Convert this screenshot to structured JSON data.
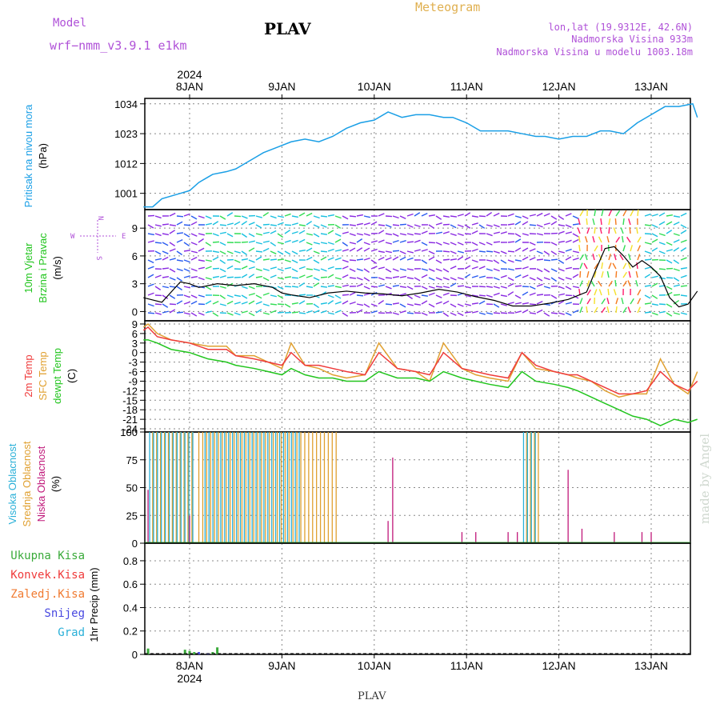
{
  "header": {
    "model_label": "Model",
    "model_name": "wrf−nmm_v3.9.1  e1km",
    "station": "PLAV",
    "product": "Meteogram",
    "coords": "lon,lat (19.9312E, 42.6N)",
    "altitude": "Nadmorska Visina 933m",
    "model_altitude": "Nadmorska Visina u modelu 1003.18m",
    "footer_station": "PLAV",
    "credit": "made by Angel"
  },
  "colors": {
    "pressure": "#1a9fe6",
    "t2m": "#ef3b3b",
    "sfc": "#e0a030",
    "dewpt": "#22c51e",
    "purple": "#b052d8",
    "high_cloud": "#2ab0d8",
    "mid_cloud": "#e0a030",
    "low_cloud": "#c0187a",
    "precip": "#3aaa3a"
  },
  "chart_data": [
    {
      "type": "line",
      "title": "",
      "ylabel_lines": [
        "Pritisak na nivou mora",
        "(hPa)"
      ],
      "yticks": [
        1001,
        1012,
        1023,
        1034
      ],
      "ylim": [
        995,
        1036
      ],
      "top_axis": {
        "year": "2024",
        "dates": [
          "8JAN",
          "9JAN",
          "10JAN",
          "11JAN",
          "12JAN",
          "13JAN"
        ]
      },
      "x": [
        0,
        0.1,
        0.2,
        0.3,
        0.4,
        0.5,
        0.6,
        0.7,
        0.75,
        0.9,
        1.0,
        1.1,
        1.2,
        1.3,
        1.45,
        1.6,
        1.75,
        1.9,
        2.05,
        2.2,
        2.35,
        2.5,
        2.65,
        2.8,
        2.95,
        3.1,
        3.25,
        3.35,
        3.5,
        3.65,
        3.8,
        3.95,
        4.1,
        4.25,
        4.35,
        4.5,
        4.65,
        4.8,
        4.95,
        5.05,
        5.2,
        5.35,
        5.5,
        5.65,
        5.8,
        5.95,
        6.0
      ],
      "series": [
        {
          "name": "",
          "values": [
            996,
            996,
            999,
            1000,
            1001,
            1002,
            1005,
            1007,
            1008,
            1009,
            1010,
            1012,
            1014,
            1016,
            1018,
            1020,
            1021,
            1020,
            1022,
            1025,
            1027,
            1028,
            1031,
            1029,
            1030,
            1030,
            1029,
            1029,
            1027,
            1024,
            1024,
            1024,
            1023,
            1022,
            1022,
            1021,
            1022,
            1022,
            1024,
            1024,
            1023,
            1027,
            1030,
            1033,
            1033,
            1034,
            1029
          ]
        }
      ]
    },
    {
      "type": "line",
      "title": "",
      "ylabel_lines": [
        "10m Vjetar",
        "Brzina i Pravac",
        "(m/s)"
      ],
      "compass": {
        "n": "N",
        "s": "S",
        "e": "E",
        "w": "W"
      },
      "yticks": [
        0,
        3,
        6,
        9
      ],
      "ylim": [
        -1,
        11
      ],
      "x": [
        0,
        0.2,
        0.4,
        0.5,
        0.6,
        0.8,
        1.0,
        1.2,
        1.4,
        1.5,
        1.6,
        1.8,
        2.0,
        2.2,
        2.4,
        2.6,
        2.8,
        3.0,
        3.2,
        3.4,
        3.6,
        3.8,
        4.0,
        4.2,
        4.4,
        4.6,
        4.7,
        4.8,
        4.9,
        5.0,
        5.1,
        5.2,
        5.3,
        5.4,
        5.5,
        5.6,
        5.7,
        5.8,
        5.9,
        6.0
      ],
      "series": [
        {
          "name": "",
          "values": [
            1.5,
            1.0,
            3.2,
            3.0,
            2.6,
            3.0,
            2.8,
            3.0,
            2.6,
            2.0,
            1.8,
            1.5,
            2.0,
            2.2,
            2.0,
            1.9,
            1.7,
            2.0,
            2.4,
            2.1,
            1.6,
            1.2,
            0.6,
            0.6,
            0.9,
            1.3,
            1.7,
            2.1,
            4.5,
            6.8,
            7.0,
            6.0,
            4.8,
            5.5,
            4.8,
            3.8,
            1.5,
            0.5,
            0.8,
            2.2
          ]
        }
      ]
    },
    {
      "type": "line",
      "title": "",
      "ylabel_lines": [
        "2m Temp",
        "SFC Temp",
        "dewpt Temp",
        "(C)"
      ],
      "yticks": [
        9,
        6,
        3,
        0,
        -3,
        -6,
        -9,
        -12,
        -15,
        -18,
        -21,
        -24
      ],
      "ylim": [
        -25,
        10
      ],
      "x": [
        0,
        0.05,
        0.15,
        0.3,
        0.5,
        0.7,
        0.9,
        1.0,
        1.2,
        1.35,
        1.5,
        1.6,
        1.75,
        1.9,
        2.05,
        2.2,
        2.4,
        2.55,
        2.75,
        2.95,
        3.1,
        3.25,
        3.45,
        3.6,
        3.75,
        3.95,
        4.1,
        4.25,
        4.45,
        4.6,
        4.7,
        4.85,
        5.0,
        5.15,
        5.3,
        5.45,
        5.6,
        5.75,
        5.9,
        6.0
      ],
      "series": [
        {
          "name": "2m Temp",
          "values": [
            7,
            8,
            5,
            4,
            3,
            1,
            1,
            -1,
            -2,
            -3,
            -4,
            0,
            -4,
            -4,
            -5,
            -6,
            -7,
            0,
            -5,
            -6,
            -7,
            0,
            -5,
            -6,
            -7,
            -8,
            0,
            -4,
            -6,
            -7,
            -7,
            -9,
            -11,
            -13,
            -13,
            -12,
            -6,
            -10,
            -12,
            -9
          ]
        },
        {
          "name": "SFC Temp",
          "values": [
            8,
            9,
            6,
            4,
            3,
            2,
            2,
            -1,
            -1,
            -3,
            -5,
            3,
            -4,
            -5,
            -7,
            -8,
            -7,
            3,
            -5,
            -6,
            -9,
            3,
            -5,
            -7,
            -8,
            -9,
            0,
            -5,
            -6,
            -7,
            -8,
            -9,
            -12,
            -14,
            -13,
            -13,
            -2,
            -10,
            -13,
            -6
          ]
        },
        {
          "name": "dewpt Temp",
          "values": [
            4,
            4,
            3,
            1,
            0,
            -2,
            -3,
            -4,
            -5,
            -6,
            -7,
            -5,
            -7,
            -8,
            -8,
            -9,
            -9,
            -6,
            -8,
            -8,
            -9,
            -6,
            -8,
            -9,
            -10,
            -11,
            -6,
            -9,
            -10,
            -11,
            -12,
            -14,
            -16,
            -18,
            -20,
            -21,
            -23,
            -21,
            -22,
            -21
          ]
        }
      ]
    },
    {
      "type": "bar",
      "title": "",
      "ylabel_lines": [
        "Visoka Oblacnost",
        "Srednja Oblacnost",
        "Niska Oblacnost",
        "(%)"
      ],
      "yticks": [
        0,
        25,
        50,
        75,
        100
      ],
      "ylim": [
        0,
        100
      ],
      "series": [
        {
          "name": "Visoka Oblacnost",
          "segments": [
            {
              "from": 0.05,
              "to": 0.55,
              "value": 100
            },
            {
              "from": 0.65,
              "to": 1.7,
              "value": 100
            },
            {
              "from": 4.1,
              "to": 4.25,
              "value": 100
            }
          ]
        },
        {
          "name": "Srednja Oblacnost",
          "segments": [
            {
              "from": 0.1,
              "to": 0.55,
              "value": 100
            },
            {
              "from": 0.6,
              "to": 2.1,
              "value": 100
            },
            {
              "from": 4.15,
              "to": 4.3,
              "value": 100
            }
          ]
        },
        {
          "name": "Niska Oblacnost",
          "points": [
            {
              "x": 0.05,
              "value": 48
            },
            {
              "x": 0.5,
              "value": 25
            },
            {
              "x": 2.7,
              "value": 77
            },
            {
              "x": 2.65,
              "value": 20
            },
            {
              "x": 4.6,
              "value": 66
            },
            {
              "x": 3.95,
              "value": 10
            },
            {
              "x": 4.05,
              "value": 10
            },
            {
              "x": 4.75,
              "value": 13
            },
            {
              "x": 5.1,
              "value": 10
            },
            {
              "x": 5.5,
              "value": 10
            },
            {
              "x": 5.4,
              "value": 10
            },
            {
              "x": 3.6,
              "value": 10
            },
            {
              "x": 3.45,
              "value": 10
            }
          ]
        }
      ]
    },
    {
      "type": "bar",
      "title": "",
      "ylabel_lines": [
        "1hr Precip (mm)"
      ],
      "legend": [
        "Ukupna Kisa",
        "Konvek.Kisa",
        "Zaledj.Kisa",
        "Snijeg",
        "Grad"
      ],
      "yticks": [
        0,
        0.2,
        0.4,
        0.6,
        0.8
      ],
      "ylim": [
        0,
        0.95
      ],
      "bottom_axis": {
        "dates": [
          "8JAN",
          "9JAN",
          "10JAN",
          "11JAN",
          "12JAN",
          "13JAN"
        ],
        "year": "2024"
      },
      "series": [
        {
          "name": "Ukupna Kisa",
          "points": [
            {
              "x": 0.05,
              "value": 0.05
            },
            {
              "x": 0.45,
              "value": 0.04
            },
            {
              "x": 0.5,
              "value": 0.03
            },
            {
              "x": 0.55,
              "value": 0.02
            },
            {
              "x": 0.8,
              "value": 0.06
            },
            {
              "x": 0.75,
              "value": 0.02
            }
          ]
        },
        {
          "name": "Snijeg",
          "points": [
            {
              "x": 0.6,
              "value": 0.02
            },
            {
              "x": 0.7,
              "value": 0.01
            }
          ]
        }
      ]
    }
  ]
}
